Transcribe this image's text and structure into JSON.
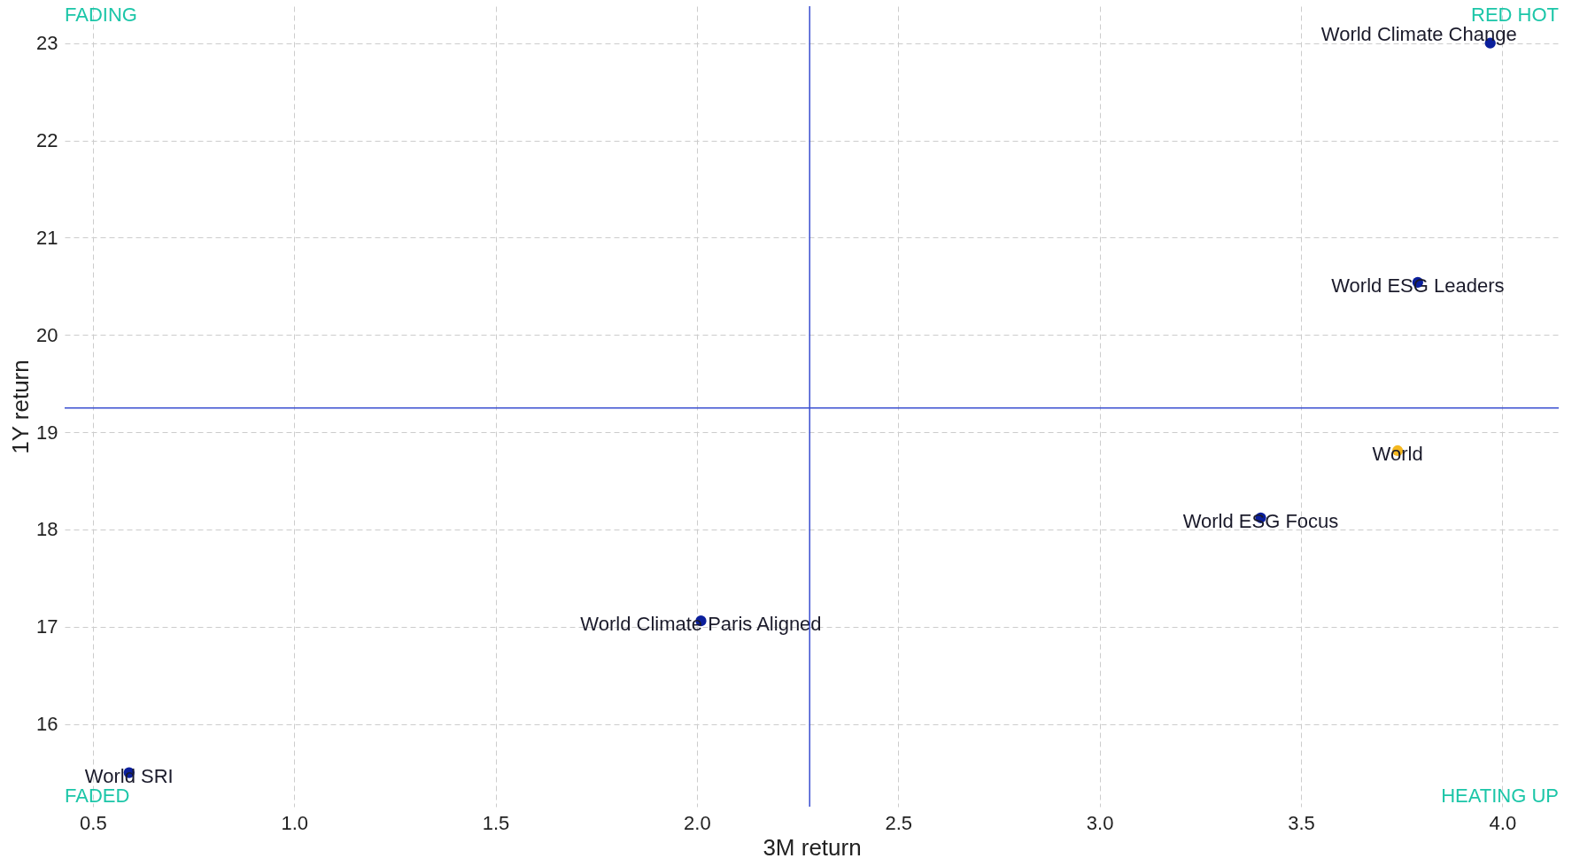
{
  "chart_data": {
    "type": "scatter",
    "xlabel": "3M return",
    "ylabel": "1Y return",
    "series": [
      {
        "name": "World Climate Change",
        "color": "#0b1f9c",
        "x": [
          3.97
        ],
        "values": [
          23.0
        ]
      },
      {
        "name": "World ESG Leaders",
        "color": "#0b1f9c",
        "x": [
          3.79
        ],
        "values": [
          20.54
        ]
      },
      {
        "name": "World",
        "color": "#f5b820",
        "x": [
          3.74
        ],
        "values": [
          18.81
        ]
      },
      {
        "name": "World ESG Focus",
        "color": "#0b1f9c",
        "x": [
          3.4
        ],
        "values": [
          18.12
        ]
      },
      {
        "name": "World Climate Paris Aligned",
        "color": "#0b1f9c",
        "x": [
          2.01
        ],
        "values": [
          17.06
        ]
      },
      {
        "name": "World SRI",
        "color": "#0b1f9c",
        "x": [
          0.59
        ],
        "values": [
          15.5
        ]
      }
    ],
    "xlim": [
      0.43,
      4.14
    ],
    "xticks": [
      {
        "value": 0.5,
        "label": "0.5"
      },
      {
        "value": 1,
        "label": "1.0"
      },
      {
        "value": 1.5,
        "label": "1.5"
      },
      {
        "value": 2,
        "label": "2.0"
      },
      {
        "value": 2.5,
        "label": "2.5"
      },
      {
        "value": 3,
        "label": "3.0"
      },
      {
        "value": 3.5,
        "label": "3.5"
      },
      {
        "value": 4,
        "label": "4.0"
      }
    ],
    "ylim": [
      15.15,
      23.38
    ],
    "yticks": [
      16,
      17,
      18,
      19,
      20,
      21,
      22,
      23
    ],
    "ref_lines": [
      {
        "axis": "x",
        "value": 2.28,
        "color": "#3a4fd0"
      },
      {
        "axis": "y",
        "value": 19.25,
        "color": "#3a4fd0"
      }
    ],
    "annotations": [
      "FADING",
      "RED HOT",
      "FADED",
      "HEATING UP"
    ],
    "grid": true,
    "marker": "circle",
    "legend": false
  }
}
